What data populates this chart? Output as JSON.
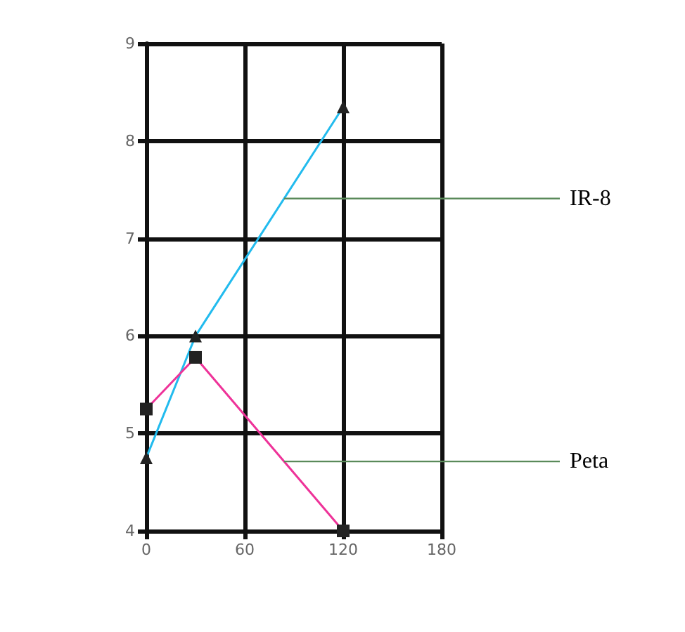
{
  "chart_data": {
    "type": "line",
    "x": [
      0,
      30,
      120
    ],
    "series": [
      {
        "name": "IR-8",
        "color": "#22bbee",
        "values": [
          4.75,
          6.0,
          8.35
        ],
        "marker": "triangle"
      },
      {
        "name": "Peta",
        "color": "#ee3399",
        "values": [
          5.25,
          5.78,
          4.0
        ],
        "marker": "square"
      }
    ],
    "xlim": [
      0,
      180
    ],
    "xticks": [
      0,
      60,
      120,
      180
    ],
    "ylim": [
      4,
      9
    ],
    "yticks": [
      4,
      5,
      6,
      7,
      8,
      9
    ],
    "grid": true,
    "legend": false
  }
}
